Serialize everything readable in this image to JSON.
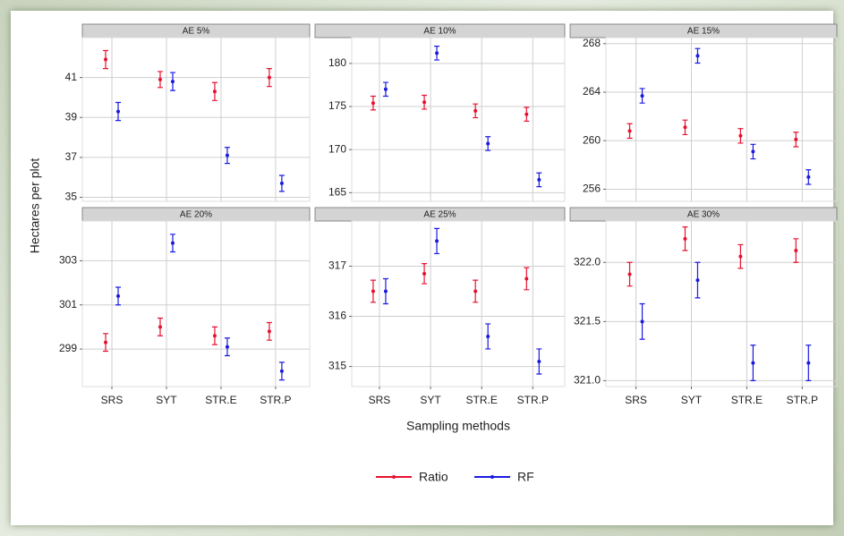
{
  "chart_data": {
    "type": "errorbar",
    "y_label": "Hectares per plot",
    "x_label": "Sampling methods",
    "categories": [
      "SRS",
      "SYT",
      "STR.E",
      "STR.P"
    ],
    "series": [
      {
        "name": "Ratio",
        "color": "#e8102e"
      },
      {
        "name": "RF",
        "color": "#1a1ae0"
      }
    ],
    "grid": true,
    "panels": [
      {
        "title": "AE 5%",
        "ylim": [
          34.8,
          43
        ],
        "yticks": [
          35,
          37,
          39,
          41
        ],
        "series": [
          {
            "values": [
              41.9,
              40.9,
              40.3,
              41.0
            ],
            "errors": [
              0.45,
              0.4,
              0.45,
              0.45
            ]
          },
          {
            "values": [
              39.3,
              40.8,
              37.1,
              35.7
            ],
            "errors": [
              0.45,
              0.45,
              0.4,
              0.4
            ]
          }
        ]
      },
      {
        "title": "AE 10%",
        "ylim": [
          164,
          183
        ],
        "yticks": [
          165,
          170,
          175,
          180
        ],
        "series": [
          {
            "values": [
              175.4,
              175.5,
              174.5,
              174.1
            ],
            "errors": [
              0.8,
              0.8,
              0.8,
              0.8
            ]
          },
          {
            "values": [
              177.0,
              181.2,
              170.7,
              166.5
            ],
            "errors": [
              0.8,
              0.8,
              0.8,
              0.8
            ]
          }
        ]
      },
      {
        "title": "AE 15%",
        "ylim": [
          255,
          268.5
        ],
        "yticks": [
          256,
          260,
          264,
          268
        ],
        "series": [
          {
            "values": [
              260.8,
              261.1,
              260.4,
              260.1
            ],
            "errors": [
              0.6,
              0.6,
              0.6,
              0.6
            ]
          },
          {
            "values": [
              263.7,
              267.0,
              259.1,
              257.0
            ],
            "errors": [
              0.6,
              0.6,
              0.6,
              0.6
            ]
          }
        ]
      },
      {
        "title": "AE 20%",
        "ylim": [
          297.3,
          304.8
        ],
        "yticks": [
          299,
          301,
          303
        ],
        "series": [
          {
            "values": [
              299.3,
              300.0,
              299.6,
              299.8
            ],
            "errors": [
              0.4,
              0.4,
              0.4,
              0.4
            ]
          },
          {
            "values": [
              301.4,
              303.8,
              299.1,
              298.0
            ],
            "errors": [
              0.4,
              0.4,
              0.4,
              0.4
            ]
          }
        ]
      },
      {
        "title": "AE 25%",
        "ylim": [
          314.6,
          317.9
        ],
        "yticks": [
          315,
          316,
          317
        ],
        "series": [
          {
            "values": [
              316.5,
              316.85,
              316.5,
              316.75
            ],
            "errors": [
              0.22,
              0.2,
              0.22,
              0.22
            ]
          },
          {
            "values": [
              316.5,
              317.5,
              315.6,
              315.1
            ],
            "errors": [
              0.25,
              0.25,
              0.25,
              0.25
            ]
          }
        ]
      },
      {
        "title": "AE 30%",
        "ylim": [
          320.95,
          322.35
        ],
        "yticks": [
          {
            "value": 321,
            "label": "321.0"
          },
          321.5,
          {
            "value": 322,
            "label": "322.0"
          }
        ],
        "series": [
          {
            "values": [
              321.9,
              322.2,
              322.05,
              322.1
            ],
            "errors": [
              0.1,
              0.1,
              0.1,
              0.1
            ]
          },
          {
            "values": [
              321.5,
              321.85,
              321.15,
              321.15
            ],
            "errors": [
              0.15,
              0.15,
              0.15,
              0.15
            ]
          }
        ]
      }
    ]
  }
}
